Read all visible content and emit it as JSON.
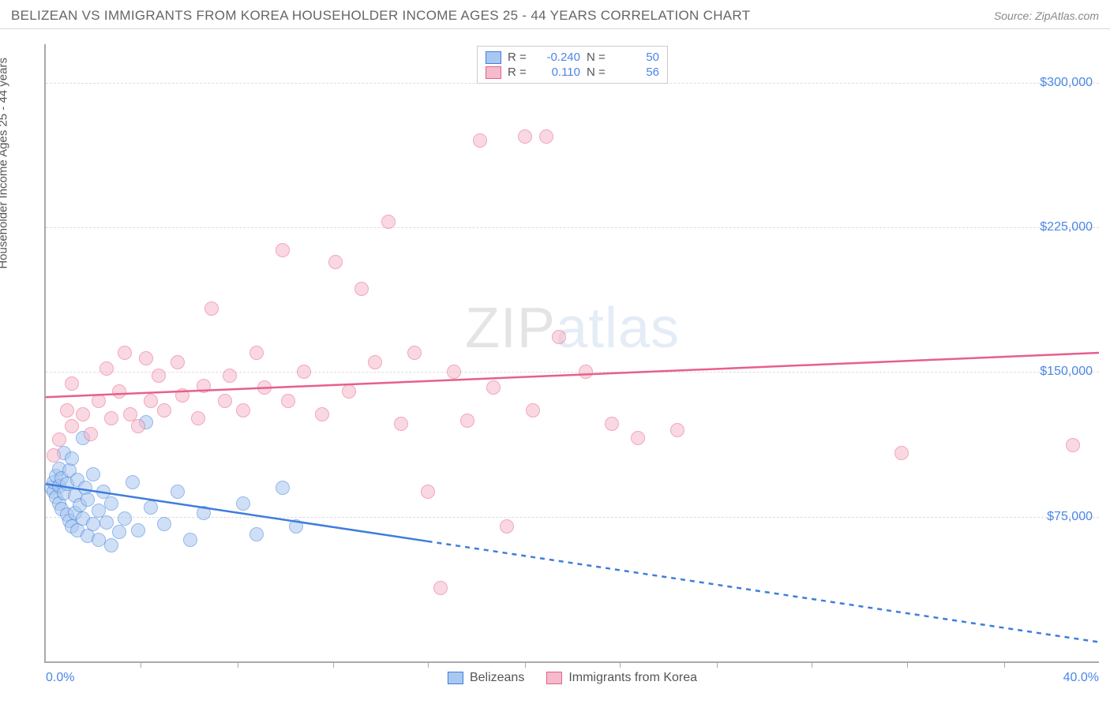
{
  "title": "BELIZEAN VS IMMIGRANTS FROM KOREA HOUSEHOLDER INCOME AGES 25 - 44 YEARS CORRELATION CHART",
  "source": "Source: ZipAtlas.com",
  "watermark": {
    "part1": "ZIP",
    "part2": "atlas"
  },
  "ylabel": "Householder Income Ages 25 - 44 years",
  "chart": {
    "type": "scatter",
    "background_color": "#ffffff",
    "grid_color": "#dddddd",
    "axis_color": "#aaaaaa",
    "x": {
      "min": 0.0,
      "max": 40.0,
      "min_label": "0.0%",
      "max_label": "40.0%",
      "ticks": [
        3.6,
        7.3,
        10.9,
        14.5,
        18.2,
        21.8,
        25.5,
        29.1,
        32.7,
        36.4
      ]
    },
    "y": {
      "min": 0,
      "max": 320000,
      "gridlines": [
        75000,
        150000,
        225000,
        300000
      ],
      "labels": [
        "$75,000",
        "$150,000",
        "$225,000",
        "$300,000"
      ]
    },
    "marker_radius": 9,
    "marker_border_width": 1.5,
    "line_width": 2.5
  },
  "series": [
    {
      "name": "Belizeans",
      "fill": "#a9c8f0",
      "stroke": "#3f7ddc",
      "fill_opacity": 0.55,
      "R": "-0.240",
      "N": "50",
      "trend": {
        "y_at_xmin": 92000,
        "y_at_xmax": 10000,
        "solid_until_x": 14.5
      },
      "points": [
        [
          0.2,
          90000
        ],
        [
          0.3,
          88000
        ],
        [
          0.3,
          93000
        ],
        [
          0.4,
          85000
        ],
        [
          0.4,
          96000
        ],
        [
          0.5,
          82000
        ],
        [
          0.5,
          100000
        ],
        [
          0.5,
          91000
        ],
        [
          0.6,
          79000
        ],
        [
          0.6,
          95000
        ],
        [
          0.7,
          108000
        ],
        [
          0.7,
          87000
        ],
        [
          0.8,
          76000
        ],
        [
          0.8,
          92000
        ],
        [
          0.9,
          73000
        ],
        [
          0.9,
          99000
        ],
        [
          1.0,
          70000
        ],
        [
          1.0,
          105000
        ],
        [
          1.1,
          86000
        ],
        [
          1.1,
          77000
        ],
        [
          1.2,
          94000
        ],
        [
          1.2,
          68000
        ],
        [
          1.3,
          81000
        ],
        [
          1.4,
          116000
        ],
        [
          1.4,
          74000
        ],
        [
          1.5,
          90000
        ],
        [
          1.6,
          65000
        ],
        [
          1.6,
          84000
        ],
        [
          1.8,
          71000
        ],
        [
          1.8,
          97000
        ],
        [
          2.0,
          78000
        ],
        [
          2.0,
          63000
        ],
        [
          2.2,
          88000
        ],
        [
          2.3,
          72000
        ],
        [
          2.5,
          60000
        ],
        [
          2.5,
          82000
        ],
        [
          2.8,
          67000
        ],
        [
          3.0,
          74000
        ],
        [
          3.3,
          93000
        ],
        [
          3.5,
          68000
        ],
        [
          3.8,
          124000
        ],
        [
          4.0,
          80000
        ],
        [
          4.5,
          71000
        ],
        [
          5.0,
          88000
        ],
        [
          5.5,
          63000
        ],
        [
          6.0,
          77000
        ],
        [
          7.5,
          82000
        ],
        [
          8.0,
          66000
        ],
        [
          9.0,
          90000
        ],
        [
          9.5,
          70000
        ]
      ]
    },
    {
      "name": "Immigants_from_Korea",
      "label": "Immigrants from Korea",
      "fill": "#f5bacb",
      "stroke": "#e85f8a",
      "fill_opacity": 0.55,
      "R": "0.110",
      "N": "56",
      "trend": {
        "y_at_xmin": 137000,
        "y_at_xmax": 160000,
        "solid_until_x": 40.0
      },
      "points": [
        [
          0.3,
          107000
        ],
        [
          0.5,
          115000
        ],
        [
          0.8,
          130000
        ],
        [
          1.0,
          122000
        ],
        [
          1.0,
          144000
        ],
        [
          1.4,
          128000
        ],
        [
          1.7,
          118000
        ],
        [
          2.0,
          135000
        ],
        [
          2.3,
          152000
        ],
        [
          2.5,
          126000
        ],
        [
          2.8,
          140000
        ],
        [
          3.0,
          160000
        ],
        [
          3.2,
          128000
        ],
        [
          3.5,
          122000
        ],
        [
          3.8,
          157000
        ],
        [
          4.0,
          135000
        ],
        [
          4.3,
          148000
        ],
        [
          4.5,
          130000
        ],
        [
          5.0,
          155000
        ],
        [
          5.2,
          138000
        ],
        [
          5.8,
          126000
        ],
        [
          6.0,
          143000
        ],
        [
          6.3,
          183000
        ],
        [
          6.8,
          135000
        ],
        [
          7.0,
          148000
        ],
        [
          7.5,
          130000
        ],
        [
          8.0,
          160000
        ],
        [
          8.3,
          142000
        ],
        [
          9.0,
          213000
        ],
        [
          9.2,
          135000
        ],
        [
          9.8,
          150000
        ],
        [
          10.5,
          128000
        ],
        [
          11.0,
          207000
        ],
        [
          11.5,
          140000
        ],
        [
          12.0,
          193000
        ],
        [
          12.5,
          155000
        ],
        [
          13.0,
          228000
        ],
        [
          13.5,
          123000
        ],
        [
          14.0,
          160000
        ],
        [
          14.5,
          88000
        ],
        [
          15.0,
          38000
        ],
        [
          15.5,
          150000
        ],
        [
          16.0,
          125000
        ],
        [
          16.5,
          270000
        ],
        [
          17.0,
          142000
        ],
        [
          17.5,
          70000
        ],
        [
          18.2,
          272000
        ],
        [
          18.5,
          130000
        ],
        [
          19.0,
          272000
        ],
        [
          19.5,
          168000
        ],
        [
          20.5,
          150000
        ],
        [
          21.5,
          123000
        ],
        [
          22.5,
          116000
        ],
        [
          24.0,
          120000
        ],
        [
          32.5,
          108000
        ],
        [
          39.0,
          112000
        ]
      ]
    }
  ],
  "legend_bottom": [
    {
      "label": "Belizeans",
      "fill": "#a9c8f0",
      "stroke": "#3f7ddc"
    },
    {
      "label": "Immigrants from Korea",
      "fill": "#f5bacb",
      "stroke": "#e85f8a"
    }
  ]
}
